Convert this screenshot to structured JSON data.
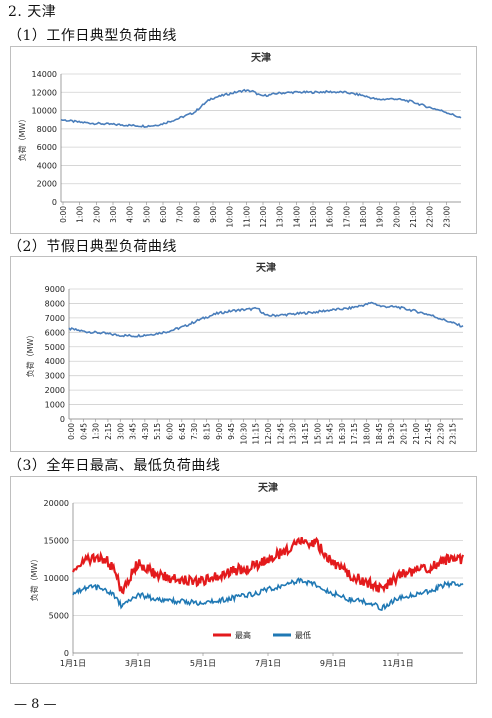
{
  "section_title": "2. 天津",
  "footer": "— 8 —",
  "sections": [
    {
      "heading": "（1）工作日典型负荷曲线"
    },
    {
      "heading": "（2）节假日典型负荷曲线"
    },
    {
      "heading": "（3）全年日最高、最低负荷曲线"
    }
  ],
  "chart_data": [
    {
      "type": "line",
      "title": "天津",
      "ylabel": "负荷（MW）",
      "ylim": [
        0,
        14000
      ],
      "yticks": [
        0,
        2000,
        4000,
        6000,
        8000,
        10000,
        12000,
        14000
      ],
      "xticks": [
        "0:00",
        "1:00",
        "2:00",
        "3:00",
        "4:00",
        "5:00",
        "6:00",
        "7:00",
        "8:00",
        "9:00",
        "10:00",
        "11:00",
        "12:00",
        "13:00",
        "14:00",
        "15:00",
        "16:00",
        "17:00",
        "18:00",
        "19:00",
        "20:00",
        "21:00",
        "22:00",
        "23:00"
      ],
      "grid": true,
      "color": "#4a7ebb",
      "x_hours": [
        0,
        1,
        2,
        3,
        4,
        5,
        5.5,
        6,
        7,
        8,
        8.5,
        9,
        10,
        11,
        11.5,
        12,
        12.5,
        13,
        14,
        15,
        16,
        17,
        18,
        19,
        20,
        21,
        22,
        23,
        24
      ],
      "y": [
        9000,
        8750,
        8600,
        8500,
        8400,
        8300,
        8350,
        8500,
        9100,
        9800,
        10600,
        11300,
        11800,
        12200,
        12100,
        11600,
        11700,
        11900,
        12000,
        12000,
        12050,
        12000,
        11700,
        11200,
        11300,
        11000,
        10400,
        9900,
        9200
      ]
    },
    {
      "type": "line",
      "title": "天津",
      "ylabel": "负荷（MW）",
      "ylim": [
        0,
        9000
      ],
      "yticks": [
        0,
        1000,
        2000,
        3000,
        4000,
        5000,
        6000,
        7000,
        8000,
        9000
      ],
      "xticks": [
        "0:00",
        "0:45",
        "1:30",
        "2:15",
        "3:00",
        "3:45",
        "4:30",
        "5:15",
        "6:00",
        "6:45",
        "7:30",
        "8:15",
        "9:00",
        "9:45",
        "10:30",
        "11:15",
        "12:00",
        "12:45",
        "13:30",
        "14:15",
        "15:00",
        "15:45",
        "16:30",
        "17:15",
        "18:00",
        "18:45",
        "19:30",
        "20:15",
        "21:00",
        "21:45",
        "22:30",
        "23:15"
      ],
      "grid": true,
      "color": "#4a7ebb",
      "x_hours": [
        0,
        1,
        2,
        3,
        4,
        5,
        6,
        7,
        8,
        9,
        10,
        11,
        11.5,
        12,
        13,
        14,
        15,
        16,
        17,
        18,
        18.5,
        19,
        20,
        21,
        22,
        23,
        24
      ],
      "y": [
        6250,
        6050,
        5950,
        5800,
        5750,
        5850,
        6050,
        6400,
        6900,
        7300,
        7500,
        7600,
        7650,
        7150,
        7200,
        7300,
        7400,
        7550,
        7650,
        7900,
        8050,
        7800,
        7750,
        7500,
        7200,
        6800,
        6400
      ]
    },
    {
      "type": "line",
      "title": "天津",
      "ylabel": "负荷（MW）",
      "ylim": [
        0,
        20000
      ],
      "yticks": [
        0,
        5000,
        10000,
        15000,
        20000
      ],
      "xticks": [
        "1月1日",
        "3月1日",
        "5月1日",
        "7月1日",
        "9月1日",
        "11月1日"
      ],
      "grid": true,
      "legend_position": "bottom",
      "x_months": [
        0,
        0.5,
        1,
        1.3,
        1.5,
        1.8,
        2,
        2.5,
        3,
        3.5,
        4,
        4.5,
        5,
        5.5,
        6,
        6.5,
        7,
        7.5,
        8,
        8.5,
        9,
        9.5,
        10,
        10.5,
        11,
        11.5,
        12
      ],
      "series": [
        {
          "name": "最高",
          "color": "#e31a1c",
          "values": [
            11500,
            12500,
            12500,
            11000,
            8000,
            10500,
            12000,
            10500,
            10000,
            9800,
            9600,
            10500,
            11000,
            11500,
            12500,
            13500,
            15000,
            14500,
            12000,
            10500,
            9500,
            8500,
            10200,
            11000,
            11500,
            12500,
            12500
          ]
        },
        {
          "name": "最低",
          "color": "#1f78b4",
          "values": [
            8000,
            8900,
            8500,
            7500,
            6200,
            7300,
            7800,
            7200,
            7000,
            6800,
            6700,
            7000,
            7400,
            7800,
            8500,
            9000,
            9800,
            9000,
            8000,
            7200,
            6800,
            6000,
            7300,
            7800,
            8300,
            9200,
            9200
          ]
        }
      ]
    }
  ]
}
